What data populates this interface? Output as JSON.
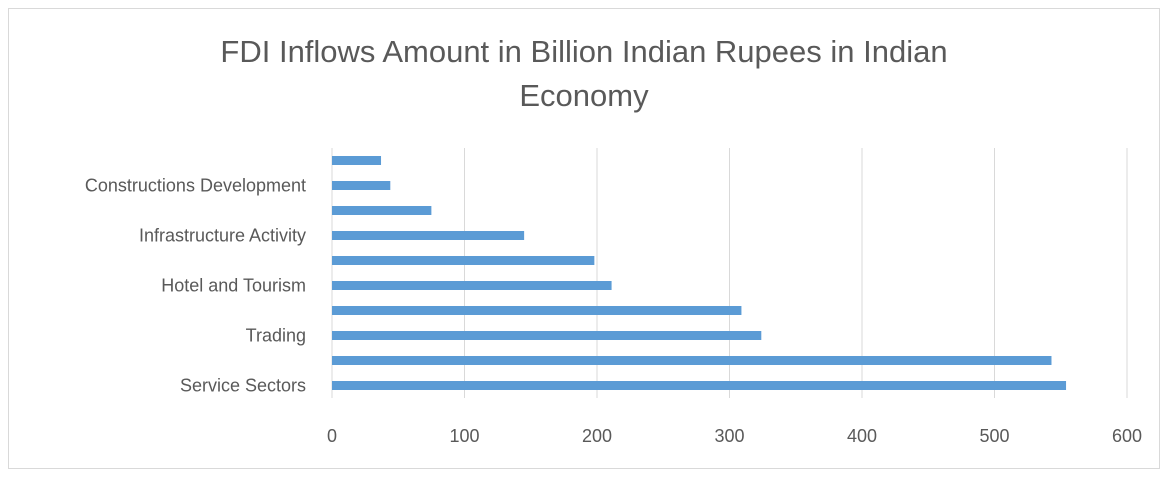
{
  "chart_data": {
    "type": "bar",
    "orientation": "horizontal",
    "title": "FDI  Inflows Amount in Billion Indian Rupees in Indian\nEconomy",
    "categories": [
      "Service Sectors",
      "",
      "Trading",
      "",
      "Hotel and Tourism",
      "",
      "Infrastructure Activity",
      "",
      "Constructions Development",
      ""
    ],
    "values": [
      554,
      543,
      324,
      309,
      211,
      198,
      145,
      75,
      44,
      37
    ],
    "xlim": [
      0,
      600
    ],
    "xticks": [
      0,
      100,
      200,
      300,
      400,
      500,
      600
    ],
    "bar_color": "#5b9bd5",
    "grid": true,
    "legend": "none"
  }
}
